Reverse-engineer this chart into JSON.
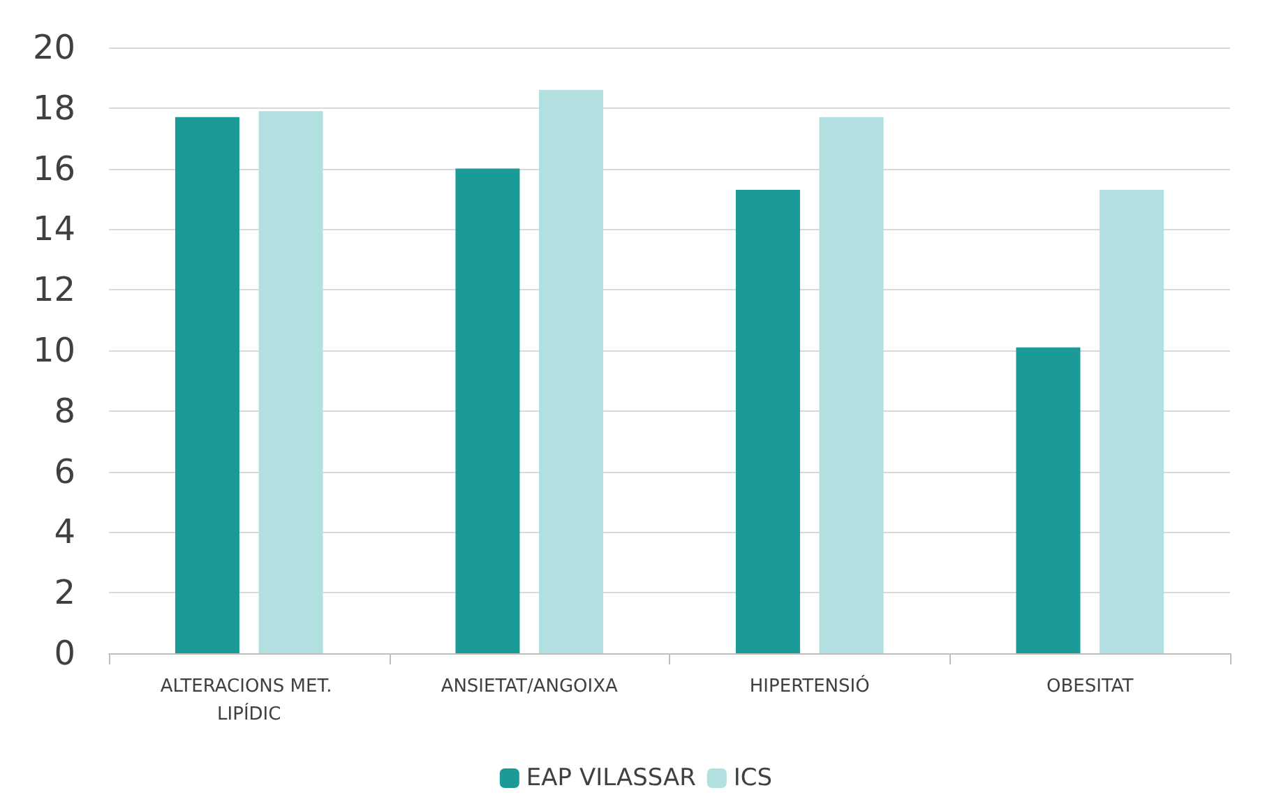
{
  "chart_data": {
    "type": "bar",
    "categories": [
      "ALTERACIONS MET. LIPÍDIC",
      "ANSIETAT/ANGOIXA",
      "HIPERTENSIÓ",
      "OBESITAT"
    ],
    "series": [
      {
        "name": "EAP VILASSAR",
        "color": "#1c9a98",
        "values": [
          17.7,
          16.0,
          15.3,
          10.1
        ]
      },
      {
        "name": "ICS",
        "color": "#b2dfdf",
        "values": [
          17.9,
          18.6,
          17.7,
          15.3
        ]
      }
    ],
    "ylim": [
      0,
      20
    ],
    "yticks": [
      0,
      2,
      4,
      6,
      8,
      10,
      12,
      14,
      16,
      18,
      20
    ],
    "grid": "y",
    "legend": "bottom"
  }
}
